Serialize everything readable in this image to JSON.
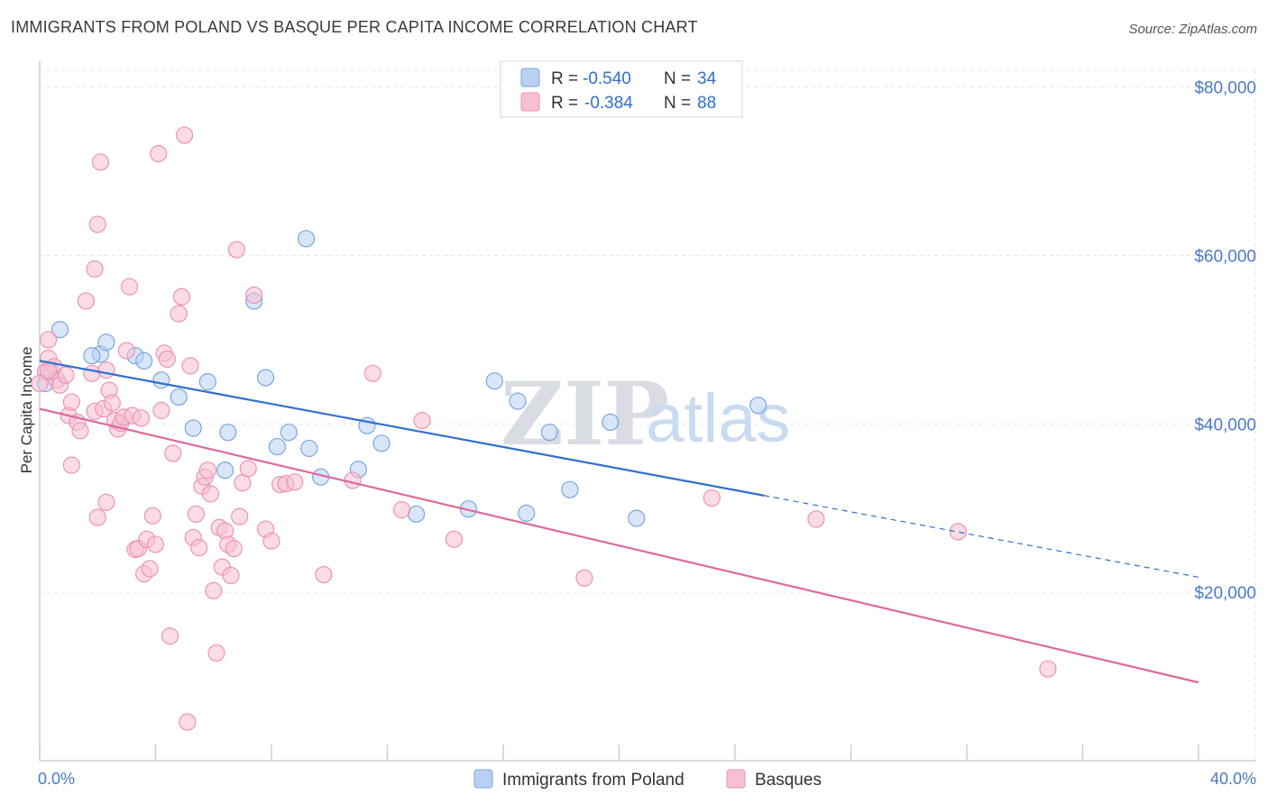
{
  "title": "IMMIGRANTS FROM POLAND VS BASQUE PER CAPITA INCOME CORRELATION CHART",
  "source": "Source: ZipAtlas.com",
  "watermark": {
    "zip": "ZIP",
    "atlas": "atlas"
  },
  "legend": {
    "rows": [
      {
        "r_label": "R =",
        "r_value": "-0.540",
        "n_label": "N =",
        "n_value": "34"
      },
      {
        "r_label": "R =",
        "r_value": "-0.384",
        "n_label": "N =",
        "n_value": "88"
      }
    ]
  },
  "colors": {
    "poland_fill": "#b8d1f3",
    "poland_stroke": "#7aa6e0",
    "poland_line": "#2f6fce",
    "basque_fill": "#f7c0d2",
    "basque_stroke": "#ec93b2",
    "basque_line": "#e0689a",
    "grid": "#e6e6e6",
    "axis_text": "#4a7bc8"
  },
  "chart_data": {
    "type": "scatter",
    "title": "IMMIGRANTS FROM POLAND VS BASQUE PER CAPITA INCOME CORRELATION CHART",
    "xlabel": "",
    "ylabel": "Per Capita Income",
    "xlim": [
      0,
      0.4
    ],
    "ylim": [
      0,
      82000
    ],
    "x_tick_labels": [
      "0.0%",
      "40.0%"
    ],
    "y_ticks": [
      20000,
      40000,
      60000,
      80000
    ],
    "y_tick_labels": [
      "$20,000",
      "$40,000",
      "$60,000",
      "$80,000"
    ],
    "series": [
      {
        "name": "Immigrants from Poland",
        "r": -0.54,
        "n": 34,
        "trend": {
          "x0": 0.0,
          "y0": 47500,
          "x1": 0.25,
          "y1": 31500,
          "dash_to_x": 0.4,
          "dash_to_y": 21800
        },
        "points": [
          [
            0.002,
            44800
          ],
          [
            0.004,
            46200
          ],
          [
            0.007,
            51200
          ],
          [
            0.021,
            48300
          ],
          [
            0.018,
            48100
          ],
          [
            0.023,
            49700
          ],
          [
            0.033,
            48100
          ],
          [
            0.036,
            47500
          ],
          [
            0.042,
            45200
          ],
          [
            0.048,
            43200
          ],
          [
            0.053,
            39500
          ],
          [
            0.058,
            45000
          ],
          [
            0.065,
            39000
          ],
          [
            0.064,
            34500
          ],
          [
            0.074,
            54600
          ],
          [
            0.078,
            45500
          ],
          [
            0.082,
            37300
          ],
          [
            0.086,
            39000
          ],
          [
            0.092,
            62000
          ],
          [
            0.093,
            37100
          ],
          [
            0.097,
            33700
          ],
          [
            0.11,
            34600
          ],
          [
            0.113,
            39800
          ],
          [
            0.118,
            37700
          ],
          [
            0.13,
            29300
          ],
          [
            0.148,
            29900
          ],
          [
            0.157,
            45100
          ],
          [
            0.165,
            42700
          ],
          [
            0.168,
            29400
          ],
          [
            0.176,
            39000
          ],
          [
            0.183,
            32200
          ],
          [
            0.197,
            40200
          ],
          [
            0.206,
            28800
          ],
          [
            0.248,
            42200
          ]
        ]
      },
      {
        "name": "Basques",
        "r": -0.384,
        "n": 88,
        "trend": {
          "x0": 0.0,
          "y0": 41800,
          "x1": 0.4,
          "y1": 9300
        },
        "points": [
          [
            0.002,
            46200
          ],
          [
            0.003,
            50000
          ],
          [
            0.003,
            47800
          ],
          [
            0.005,
            46800
          ],
          [
            0.006,
            45200
          ],
          [
            0.007,
            44600
          ],
          [
            0.009,
            45800
          ],
          [
            0.01,
            41000
          ],
          [
            0.011,
            35100
          ],
          [
            0.011,
            42600
          ],
          [
            0.013,
            40200
          ],
          [
            0.014,
            39200
          ],
          [
            0.016,
            54600
          ],
          [
            0.018,
            46000
          ],
          [
            0.019,
            41500
          ],
          [
            0.019,
            58400
          ],
          [
            0.02,
            28900
          ],
          [
            0.02,
            63700
          ],
          [
            0.021,
            71100
          ],
          [
            0.022,
            41800
          ],
          [
            0.023,
            30700
          ],
          [
            0.023,
            46400
          ],
          [
            0.024,
            44000
          ],
          [
            0.025,
            42500
          ],
          [
            0.026,
            40400
          ],
          [
            0.027,
            39400
          ],
          [
            0.028,
            40100
          ],
          [
            0.029,
            40800
          ],
          [
            0.03,
            48700
          ],
          [
            0.031,
            56300
          ],
          [
            0.032,
            41000
          ],
          [
            0.033,
            25100
          ],
          [
            0.034,
            25200
          ],
          [
            0.035,
            40700
          ],
          [
            0.036,
            22200
          ],
          [
            0.037,
            26300
          ],
          [
            0.038,
            22800
          ],
          [
            0.039,
            29100
          ],
          [
            0.04,
            25700
          ],
          [
            0.041,
            72100
          ],
          [
            0.042,
            41600
          ],
          [
            0.043,
            48400
          ],
          [
            0.044,
            47700
          ],
          [
            0.045,
            14800
          ],
          [
            0.046,
            36500
          ],
          [
            0.048,
            53100
          ],
          [
            0.049,
            55100
          ],
          [
            0.05,
            74300
          ],
          [
            0.051,
            4600
          ],
          [
            0.052,
            46900
          ],
          [
            0.053,
            26500
          ],
          [
            0.054,
            29300
          ],
          [
            0.055,
            25300
          ],
          [
            0.056,
            32600
          ],
          [
            0.057,
            33700
          ],
          [
            0.058,
            34500
          ],
          [
            0.059,
            31700
          ],
          [
            0.06,
            20200
          ],
          [
            0.061,
            12800
          ],
          [
            0.062,
            27700
          ],
          [
            0.063,
            23000
          ],
          [
            0.064,
            27300
          ],
          [
            0.065,
            25700
          ],
          [
            0.066,
            22000
          ],
          [
            0.067,
            25200
          ],
          [
            0.068,
            60700
          ],
          [
            0.069,
            29000
          ],
          [
            0.07,
            33000
          ],
          [
            0.072,
            34700
          ],
          [
            0.074,
            55300
          ],
          [
            0.078,
            27500
          ],
          [
            0.08,
            26100
          ],
          [
            0.083,
            32800
          ],
          [
            0.085,
            32900
          ],
          [
            0.088,
            33100
          ],
          [
            0.098,
            22100
          ],
          [
            0.108,
            33300
          ],
          [
            0.115,
            46000
          ],
          [
            0.125,
            29800
          ],
          [
            0.132,
            40400
          ],
          [
            0.143,
            26300
          ],
          [
            0.188,
            21700
          ],
          [
            0.232,
            31200
          ],
          [
            0.268,
            28700
          ],
          [
            0.317,
            27200
          ],
          [
            0.348,
            10900
          ],
          [
            0.0,
            44800
          ],
          [
            0.003,
            46300
          ]
        ]
      }
    ],
    "legend_labels": [
      "Immigrants from Poland",
      "Basques"
    ]
  }
}
